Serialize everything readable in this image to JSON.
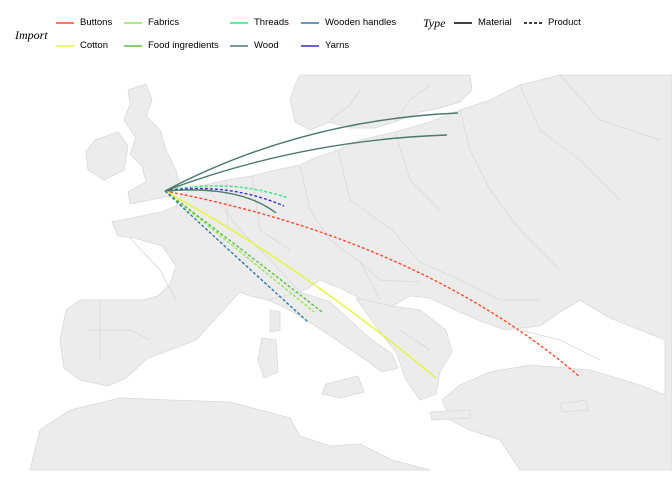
{
  "legend": {
    "import_title": "Import",
    "type_title": "Type",
    "import_items": [
      {
        "label": "Buttons",
        "color": "#ff4a2d"
      },
      {
        "label": "Cotton",
        "color": "#e6f53a"
      },
      {
        "label": "Fabrics",
        "color": "#8fe84a"
      },
      {
        "label": "Food ingredients",
        "color": "#5bbf43"
      },
      {
        "label": "Threads",
        "color": "#2fe87c"
      },
      {
        "label": "Wood",
        "color": "#4a7a66"
      },
      {
        "label": "Wooden handles",
        "color": "#2e7aa6"
      },
      {
        "label": "Yarns",
        "color": "#3730c8"
      }
    ],
    "type_items": [
      {
        "label": "Material",
        "style": "solid"
      },
      {
        "label": "Product",
        "style": "dashed"
      }
    ]
  },
  "map": {
    "land_color": "#ececec",
    "border_color": "#d9d9d9",
    "sea_color": "#ffffff",
    "origin": "United Kingdom",
    "flows": [
      {
        "import": "Wood",
        "type": "Material",
        "destination": "Baltic (north)"
      },
      {
        "import": "Wood",
        "type": "Material",
        "destination": "Baltic (south)"
      },
      {
        "import": "Threads",
        "type": "Product",
        "destination": "Germany / Czechia"
      },
      {
        "import": "Yarns",
        "type": "Product",
        "destination": "Germany / Czechia"
      },
      {
        "import": "Wood",
        "type": "Material",
        "destination": "Germany"
      },
      {
        "import": "Buttons",
        "type": "Product",
        "destination": "Turkey"
      },
      {
        "import": "Cotton",
        "type": "Material",
        "destination": "Greece"
      },
      {
        "import": "Fabrics",
        "type": "Product",
        "destination": "Northern Italy"
      },
      {
        "import": "Food ingredients",
        "type": "Product",
        "destination": "Northern Italy"
      },
      {
        "import": "Wooden handles",
        "type": "Product",
        "destination": "Northern Italy"
      }
    ]
  }
}
